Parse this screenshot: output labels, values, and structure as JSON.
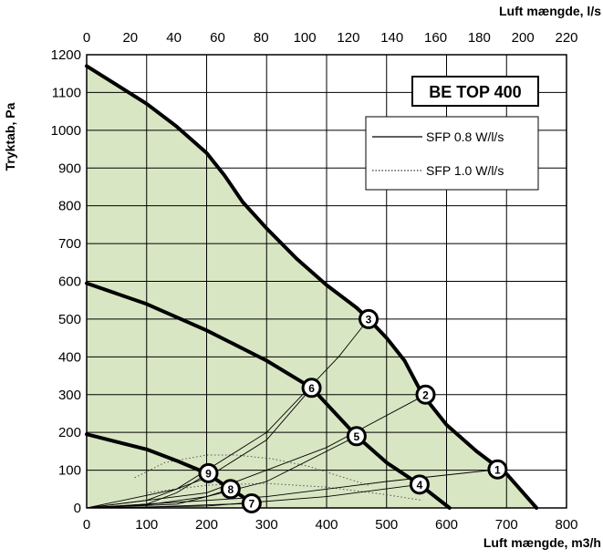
{
  "chart_data": {
    "type": "line",
    "model_label": "BE TOP 400",
    "xlabel_bottom": "Luft mængde, m3/h",
    "xlabel_top": "Luft mængde, l/s",
    "ylabel": "Tryktab, Pa",
    "x_bottom_lim": [
      0,
      800
    ],
    "x_top_lim": [
      0,
      220
    ],
    "ylim": [
      0,
      1200
    ],
    "x_bottom_ticks": [
      "0",
      "100",
      "200",
      "300",
      "400",
      "500",
      "600",
      "700",
      "800"
    ],
    "x_top_ticks": [
      "0",
      "20",
      "40",
      "60",
      "80",
      "100",
      "120",
      "140",
      "160",
      "180",
      "200",
      "220"
    ],
    "y_ticks": [
      "0",
      "100",
      "200",
      "300",
      "400",
      "500",
      "600",
      "700",
      "800",
      "900",
      "1000",
      "1100",
      "1200"
    ],
    "grid": true,
    "legend_position": "top-right",
    "legend": [
      {
        "label": "SFP 0.8 W/l/s",
        "style": "solid"
      },
      {
        "label": "SFP 1.0 W/l/s",
        "style": "dotted"
      }
    ],
    "colors": {
      "fill": "#d9e6c3",
      "curve": "#000000",
      "grid": "#000000"
    },
    "fan_curves": [
      {
        "x": [
          0,
          100,
          150,
          200,
          230,
          260,
          300,
          350,
          400,
          450,
          470,
          500,
          530,
          560,
          600,
          650,
          700,
          750
        ],
        "y": [
          1170,
          1070,
          1010,
          940,
          880,
          810,
          740,
          660,
          590,
          530,
          500,
          450,
          390,
          300,
          220,
          150,
          90,
          0
        ]
      },
      {
        "x": [
          0,
          100,
          200,
          300,
          375,
          450,
          500,
          555,
          605
        ],
        "y": [
          595,
          540,
          470,
          390,
          318,
          190,
          120,
          62,
          0
        ]
      },
      {
        "x": [
          0,
          100,
          150,
          200,
          230,
          260,
          280
        ],
        "y": [
          195,
          155,
          125,
          92,
          60,
          30,
          0
        ]
      }
    ],
    "system_curves_solid": [
      {
        "x": [
          0,
          150,
          300,
          420,
          470
        ],
        "y": [
          0,
          50,
          200,
          400,
          500
        ]
      },
      {
        "x": [
          0,
          200,
          400,
          565
        ],
        "y": [
          0,
          40,
          160,
          300
        ]
      },
      {
        "x": [
          0,
          300,
          500,
          685
        ],
        "y": [
          0,
          30,
          70,
          102
        ]
      },
      {
        "x": [
          0,
          100,
          200,
          300,
          375
        ],
        "y": [
          0,
          20,
          80,
          180,
          318
        ]
      },
      {
        "x": [
          0,
          150,
          300,
          450
        ],
        "y": [
          0,
          10,
          70,
          190
        ]
      },
      {
        "x": [
          0,
          200,
          400,
          555
        ],
        "y": [
          0,
          5,
          30,
          62
        ]
      },
      {
        "x": [
          0,
          100,
          150,
          203
        ],
        "y": [
          0,
          10,
          40,
          92
        ]
      },
      {
        "x": [
          0,
          100,
          200,
          240
        ],
        "y": [
          0,
          8,
          30,
          50
        ]
      },
      {
        "x": [
          0,
          100,
          200,
          275
        ],
        "y": [
          0,
          2,
          8,
          12
        ]
      }
    ],
    "sfp_curves_dotted": [
      {
        "x": [
          80,
          130,
          200,
          250,
          310,
          370,
          430,
          470
        ],
        "y": [
          80,
          120,
          140,
          140,
          130,
          110,
          80,
          60
        ]
      },
      {
        "x": [
          100,
          200,
          300,
          400,
          500,
          560
        ],
        "y": [
          40,
          60,
          65,
          55,
          35,
          20
        ]
      }
    ],
    "markers": [
      {
        "label": "1",
        "x": 685,
        "y": 102
      },
      {
        "label": "2",
        "x": 565,
        "y": 300
      },
      {
        "label": "3",
        "x": 470,
        "y": 500
      },
      {
        "label": "4",
        "x": 555,
        "y": 62
      },
      {
        "label": "5",
        "x": 450,
        "y": 190
      },
      {
        "label": "6",
        "x": 375,
        "y": 318
      },
      {
        "label": "7",
        "x": 275,
        "y": 12
      },
      {
        "label": "8",
        "x": 240,
        "y": 50
      },
      {
        "label": "9",
        "x": 203,
        "y": 92
      }
    ]
  }
}
